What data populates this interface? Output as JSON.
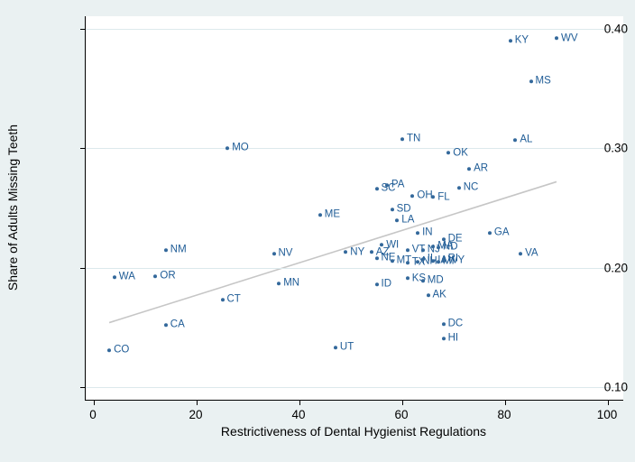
{
  "chart_data": {
    "type": "scatter",
    "title": "",
    "xlabel": "Restrictiveness of Dental Hygienist Regulations",
    "ylabel": "Share of Adults Missing Teeth",
    "xlim": [
      0,
      100
    ],
    "ylim": [
      0.1,
      0.4
    ],
    "x_ticks": [
      0,
      20,
      40,
      60,
      80,
      100
    ],
    "y_ticks": [
      "0.10",
      "0.20",
      "0.30",
      "0.40"
    ],
    "grid": "horizontal",
    "marker_label_position": "right",
    "points": [
      {
        "state": "CO",
        "x": 3,
        "y": 0.131
      },
      {
        "state": "WA",
        "x": 4,
        "y": 0.192
      },
      {
        "state": "OR",
        "x": 12,
        "y": 0.193
      },
      {
        "state": "CA",
        "x": 14,
        "y": 0.152
      },
      {
        "state": "NM",
        "x": 14,
        "y": 0.215
      },
      {
        "state": "CT",
        "x": 25,
        "y": 0.173
      },
      {
        "state": "MO",
        "x": 26,
        "y": 0.3
      },
      {
        "state": "NV",
        "x": 35,
        "y": 0.212
      },
      {
        "state": "MN",
        "x": 36,
        "y": 0.187
      },
      {
        "state": "ME",
        "x": 44,
        "y": 0.244
      },
      {
        "state": "UT",
        "x": 47,
        "y": 0.133
      },
      {
        "state": "NY",
        "x": 49,
        "y": 0.213
      },
      {
        "state": "AZ",
        "x": 54,
        "y": 0.213
      },
      {
        "state": "ID",
        "x": 55,
        "y": 0.186
      },
      {
        "state": "SC",
        "x": 55,
        "y": 0.266
      },
      {
        "state": "NE",
        "x": 55,
        "y": 0.208
      },
      {
        "state": "WI",
        "x": 56,
        "y": 0.219
      },
      {
        "state": "PA",
        "x": 57,
        "y": 0.269
      },
      {
        "state": "SD",
        "x": 58,
        "y": 0.249
      },
      {
        "state": "MT",
        "x": 58,
        "y": 0.206
      },
      {
        "state": "LA",
        "x": 59,
        "y": 0.24
      },
      {
        "state": "TN",
        "x": 60,
        "y": 0.308
      },
      {
        "state": "TX",
        "x": 61,
        "y": 0.204
      },
      {
        "state": "VT",
        "x": 61,
        "y": 0.215
      },
      {
        "state": "KS",
        "x": 61,
        "y": 0.191
      },
      {
        "state": "OH",
        "x": 62,
        "y": 0.26
      },
      {
        "state": "IN",
        "x": 63,
        "y": 0.229
      },
      {
        "state": "NH",
        "x": 63,
        "y": 0.205
      },
      {
        "state": "MD",
        "x": 64,
        "y": 0.189
      },
      {
        "state": "NJ",
        "x": 64,
        "y": 0.215
      },
      {
        "state": "IL",
        "x": 64,
        "y": 0.207
      },
      {
        "state": "AK",
        "x": 65,
        "y": 0.177
      },
      {
        "state": "FL",
        "x": 66,
        "y": 0.259
      },
      {
        "state": "MA",
        "x": 66,
        "y": 0.218
      },
      {
        "state": "IA",
        "x": 66,
        "y": 0.206
      },
      {
        "state": "MI",
        "x": 67,
        "y": 0.205
      },
      {
        "state": "ND",
        "x": 67,
        "y": 0.217
      },
      {
        "state": "RI",
        "x": 68,
        "y": 0.207
      },
      {
        "state": "WY",
        "x": 68,
        "y": 0.206
      },
      {
        "state": "DE",
        "x": 68,
        "y": 0.224
      },
      {
        "state": "DC",
        "x": 68,
        "y": 0.153
      },
      {
        "state": "HI",
        "x": 68,
        "y": 0.141
      },
      {
        "state": "OK",
        "x": 69,
        "y": 0.296
      },
      {
        "state": "NC",
        "x": 71,
        "y": 0.267
      },
      {
        "state": "AR",
        "x": 73,
        "y": 0.283
      },
      {
        "state": "GA",
        "x": 77,
        "y": 0.229
      },
      {
        "state": "KY",
        "x": 81,
        "y": 0.39
      },
      {
        "state": "AL",
        "x": 82,
        "y": 0.307
      },
      {
        "state": "VA",
        "x": 83,
        "y": 0.212
      },
      {
        "state": "MS",
        "x": 85,
        "y": 0.356
      },
      {
        "state": "WV",
        "x": 90,
        "y": 0.392
      }
    ],
    "trend_line": {
      "x1": 3,
      "y1": 0.154,
      "x2": 90,
      "y2": 0.272
    }
  },
  "colors": {
    "page_background": "#eaf1f2",
    "plot_background": "#ffffff",
    "gridline": "#dce9ec",
    "marker": "#33689b",
    "marker_label": "#1f5c96",
    "trend_line": "#c6c6c6",
    "axis": "#000000"
  }
}
